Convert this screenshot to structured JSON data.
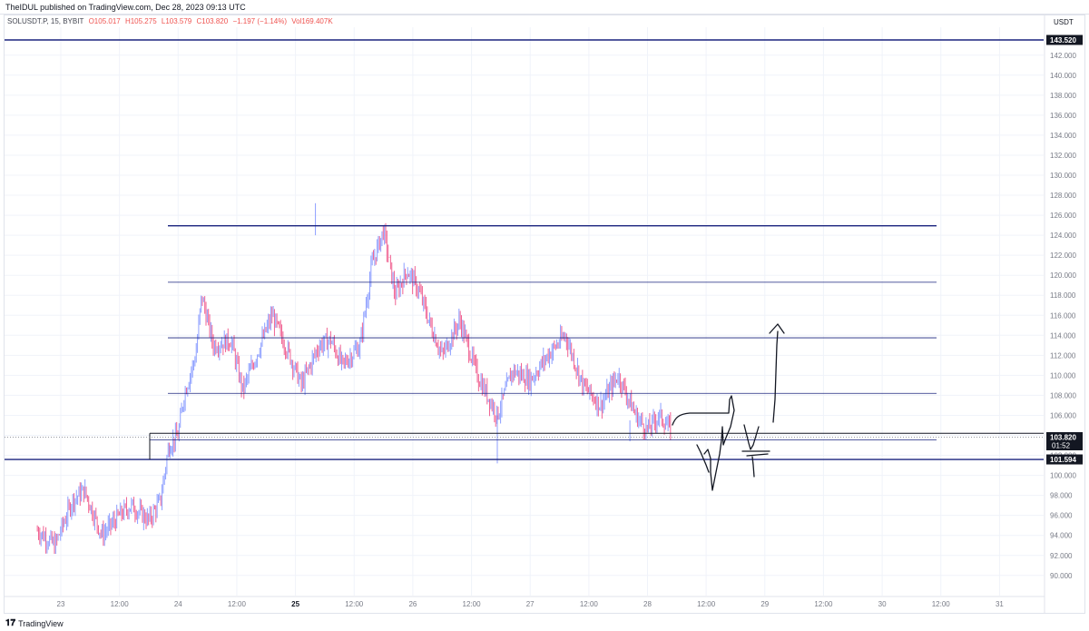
{
  "header": {
    "publish_line": "TheIDUL published on TradingView.com, Dec 28, 2023 09:13 UTC"
  },
  "legend": {
    "symbol": "SOLUSDT.P, 15, BYBIT",
    "open": "O105.017",
    "high": "H105.275",
    "low": "L103.579",
    "close": "C103.820",
    "change": "−1.197 (−1.14%)",
    "volume": "Vol169.407K"
  },
  "price_axis": {
    "currency": "USDT"
  },
  "footer": {
    "brand": "TradingView",
    "logo_glyph": "𝟏𝟕"
  },
  "colors": {
    "up": "#8c9eff",
    "down": "#f06292",
    "level_line": "#1a237e",
    "grid": "#f0f3fa",
    "axis_text": "#787b86"
  },
  "chart_data": {
    "type": "candlestick",
    "symbol": "SOLUSDT.P",
    "interval": "15",
    "exchange": "BYBIT",
    "ylim": [
      89,
      144.5
    ],
    "y_ticks": [
      90,
      92,
      94,
      96,
      98,
      100,
      102,
      104,
      106,
      108,
      110,
      112,
      114,
      116,
      118,
      120,
      122,
      124,
      126,
      128,
      130,
      132,
      134,
      136,
      138,
      140,
      142
    ],
    "y_tick_labels": [
      "90.000",
      "92.000",
      "94.000",
      "96.000",
      "98.000",
      "100.000",
      "102.000",
      "104.000",
      "106.000",
      "108.000",
      "110.000",
      "112.000",
      "114.000",
      "116.000",
      "118.000",
      "120.000",
      "122.000",
      "124.000",
      "126.000",
      "128.000",
      "130.000",
      "132.000",
      "134.000",
      "136.000",
      "138.000",
      "140.000",
      "142.000"
    ],
    "x_ticks": [
      "23",
      "12:00",
      "24",
      "12:00",
      "25",
      "12:00",
      "26",
      "12:00",
      "27",
      "12:00",
      "28",
      "12:00",
      "29",
      "12:00",
      "30",
      "12:00",
      "31"
    ],
    "x_tick_bold": [
      false,
      false,
      false,
      false,
      true,
      false,
      false,
      false,
      false,
      false,
      false,
      false,
      false,
      false,
      false,
      false,
      false
    ],
    "price_path": [
      {
        "t": -0.2,
        "p": 94.5
      },
      {
        "t": -0.05,
        "p": 93.0
      },
      {
        "t": 0.1,
        "p": 97.5
      },
      {
        "t": 0.2,
        "p": 98.5
      },
      {
        "t": 0.35,
        "p": 94.0
      },
      {
        "t": 0.5,
        "p": 96.0
      },
      {
        "t": 0.6,
        "p": 97.0
      },
      {
        "t": 0.75,
        "p": 95.5
      },
      {
        "t": 0.85,
        "p": 97.5
      },
      {
        "t": 0.92,
        "p": 103.0
      },
      {
        "t": 1.0,
        "p": 104.0
      },
      {
        "t": 1.05,
        "p": 108.0
      },
      {
        "t": 1.15,
        "p": 112.0
      },
      {
        "t": 1.2,
        "p": 118.0
      },
      {
        "t": 1.3,
        "p": 113.0
      },
      {
        "t": 1.45,
        "p": 113.5
      },
      {
        "t": 1.55,
        "p": 108.5
      },
      {
        "t": 1.7,
        "p": 113.0
      },
      {
        "t": 1.8,
        "p": 116.0
      },
      {
        "t": 1.95,
        "p": 112.0
      },
      {
        "t": 2.05,
        "p": 109.0
      },
      {
        "t": 2.2,
        "p": 113.0
      },
      {
        "t": 2.3,
        "p": 113.5
      },
      {
        "t": 2.4,
        "p": 111.0
      },
      {
        "t": 2.55,
        "p": 113.0
      },
      {
        "t": 2.65,
        "p": 121.0
      },
      {
        "t": 2.75,
        "p": 124.5
      },
      {
        "t": 2.85,
        "p": 118.0
      },
      {
        "t": 2.95,
        "p": 120.5
      },
      {
        "t": 3.05,
        "p": 118.5
      },
      {
        "t": 3.15,
        "p": 115.0
      },
      {
        "t": 3.25,
        "p": 112.0
      },
      {
        "t": 3.4,
        "p": 115.5
      },
      {
        "t": 3.55,
        "p": 110.0
      },
      {
        "t": 3.72,
        "p": 106.0
      },
      {
        "t": 3.85,
        "p": 110.5
      },
      {
        "t": 4.0,
        "p": 109.5
      },
      {
        "t": 4.15,
        "p": 112.0
      },
      {
        "t": 4.3,
        "p": 114.0
      },
      {
        "t": 4.45,
        "p": 109.0
      },
      {
        "t": 4.6,
        "p": 107.0
      },
      {
        "t": 4.75,
        "p": 110.0
      },
      {
        "t": 4.9,
        "p": 106.0
      },
      {
        "t": 5.0,
        "p": 104.5
      },
      {
        "t": 5.1,
        "p": 106.0
      },
      {
        "t": 5.2,
        "p": 104.5
      }
    ],
    "horizontal_levels": [
      {
        "price": 143.52,
        "label": "143.520",
        "extends_full": true
      },
      {
        "price": 124.95,
        "label": "",
        "extends_full": false
      },
      {
        "price": 119.3,
        "label": "",
        "extends_full": false
      },
      {
        "price": 113.75,
        "label": "",
        "extends_full": false
      },
      {
        "price": 108.2,
        "label": "",
        "extends_full": false
      },
      {
        "price": 103.548,
        "label": "103.548",
        "extends_full": false
      },
      {
        "price": 101.594,
        "label": "101.594",
        "extends_full": true
      }
    ],
    "current_price": {
      "price": 103.82,
      "label": "103.820",
      "countdown": "01:52"
    },
    "annotations": "hand-drawn lines and arrows in the 28th–29th area sketching a dip to about 100 and then a move up toward 116"
  }
}
